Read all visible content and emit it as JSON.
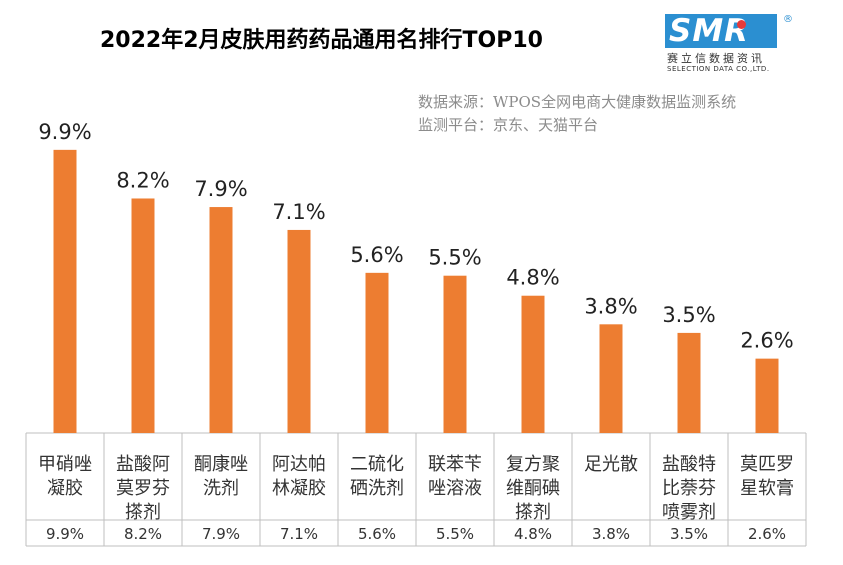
{
  "header": {
    "title": "2022年2月皮肤用药药品通用名排行TOP10"
  },
  "logo": {
    "mark": "SMR",
    "reg": "®",
    "cn": "赛立信数据资讯",
    "en": "SELECTION DATA CO.,LTD."
  },
  "source": {
    "line1": "数据来源：WPOS全网电商大健康数据监测系统",
    "line2": "监测平台：京东、天猫平台"
  },
  "colors": {
    "bar": "#ed7d31",
    "logo": "#2b8fd1"
  },
  "chart_data": {
    "type": "bar",
    "title": "2022年2月皮肤用药药品通用名排行TOP10",
    "categories": [
      [
        "甲硝唑",
        "凝胶"
      ],
      [
        "盐酸阿",
        "莫罗芬",
        "搽剂"
      ],
      [
        "酮康唑",
        "洗剂"
      ],
      [
        "阿达帕",
        "林凝胶"
      ],
      [
        "二硫化",
        "硒洗剂"
      ],
      [
        "联苯苄",
        "唑溶液"
      ],
      [
        "复方聚",
        "维酮碘",
        "搽剂"
      ],
      [
        "足光散"
      ],
      [
        "盐酸特",
        "比萘芬",
        "喷雾剂"
      ],
      [
        "莫匹罗",
        "星软膏"
      ]
    ],
    "values": [
      9.9,
      8.2,
      7.9,
      7.1,
      5.6,
      5.5,
      4.8,
      3.8,
      3.5,
      2.6
    ],
    "labels": [
      "9.9%",
      "8.2%",
      "7.9%",
      "7.1%",
      "5.6%",
      "5.5%",
      "4.8%",
      "3.8%",
      "3.5%",
      "2.6%"
    ],
    "data_table": true,
    "ylim": [
      0,
      10.5
    ],
    "grid": false
  }
}
